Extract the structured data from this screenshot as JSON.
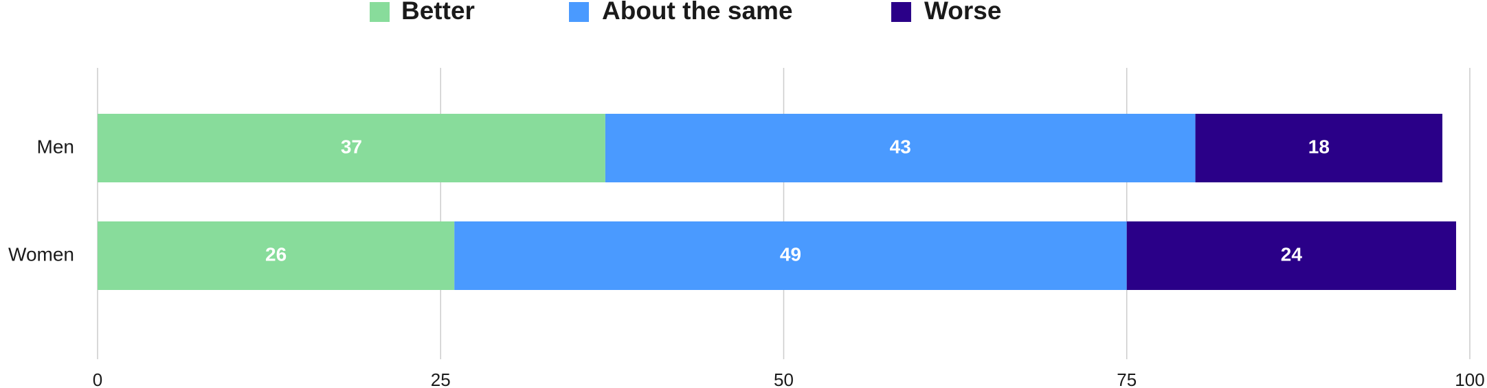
{
  "chart_data": {
    "type": "stacked_barh",
    "categories": [
      "Men",
      "Women"
    ],
    "series": [
      {
        "name": "Better",
        "color": "#88dc9b",
        "values": [
          37,
          26
        ]
      },
      {
        "name": "About the same",
        "color": "#4a9aff",
        "values": [
          43,
          49
        ]
      },
      {
        "name": "Worse",
        "color": "#2a0088",
        "values": [
          18,
          24
        ]
      }
    ],
    "xlim": [
      0,
      100
    ],
    "xticks": [
      0,
      25,
      50,
      75,
      100
    ],
    "grid": true,
    "legend": "top"
  }
}
